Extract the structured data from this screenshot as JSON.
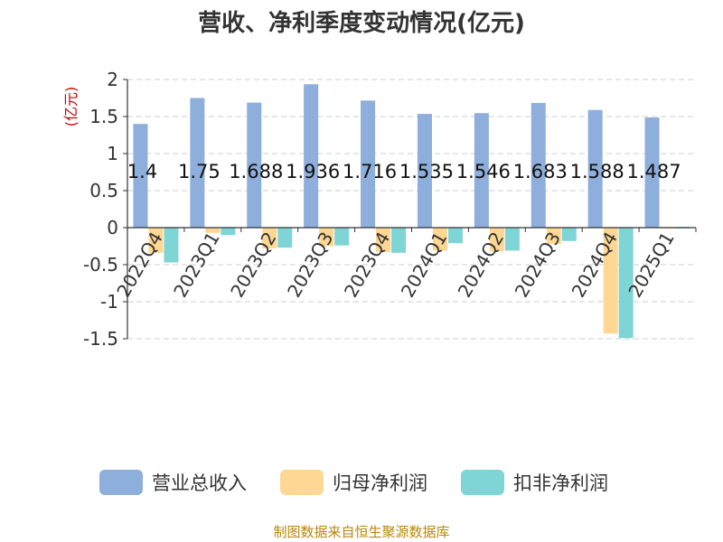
{
  "chart_data": {
    "type": "bar",
    "title": "营收、净利季度变动情况(亿元)",
    "unit_label": "(亿元)",
    "categories": [
      "2022Q4",
      "2023Q1",
      "2023Q2",
      "2023Q3",
      "2023Q4",
      "2024Q1",
      "2024Q2",
      "2024Q3",
      "2024Q4",
      "2025Q1"
    ],
    "series": [
      {
        "name": "营业总收入",
        "color": "#8eaedb",
        "values": [
          1.4,
          1.75,
          1.688,
          1.936,
          1.716,
          1.535,
          1.546,
          1.683,
          1.588,
          1.487
        ],
        "labels": [
          "1.4",
          "1.75",
          "1.688",
          "1.936",
          "1.716",
          "1.535",
          "1.546",
          "1.683",
          "1.588",
          "1.487"
        ]
      },
      {
        "name": "归母净利润",
        "color": "#fdd793",
        "values": [
          -0.34,
          -0.07,
          -0.28,
          -0.25,
          -0.33,
          -0.31,
          -0.32,
          -0.22,
          -1.43,
          0
        ]
      },
      {
        "name": "扣非净利润",
        "color": "#7fd4d5",
        "values": [
          -0.47,
          -0.1,
          -0.27,
          -0.24,
          -0.34,
          -0.21,
          -0.31,
          -0.18,
          -1.49,
          0
        ]
      }
    ],
    "ylim": [
      -1.5,
      2
    ],
    "yticks": [
      "2",
      "1.5",
      "1",
      "0.5",
      "0",
      "-0.5",
      "-1",
      "-1.5"
    ],
    "grid": true,
    "legend_position": "bottom"
  },
  "footer": {
    "source": "制图数据来自恒生聚源数据库"
  }
}
